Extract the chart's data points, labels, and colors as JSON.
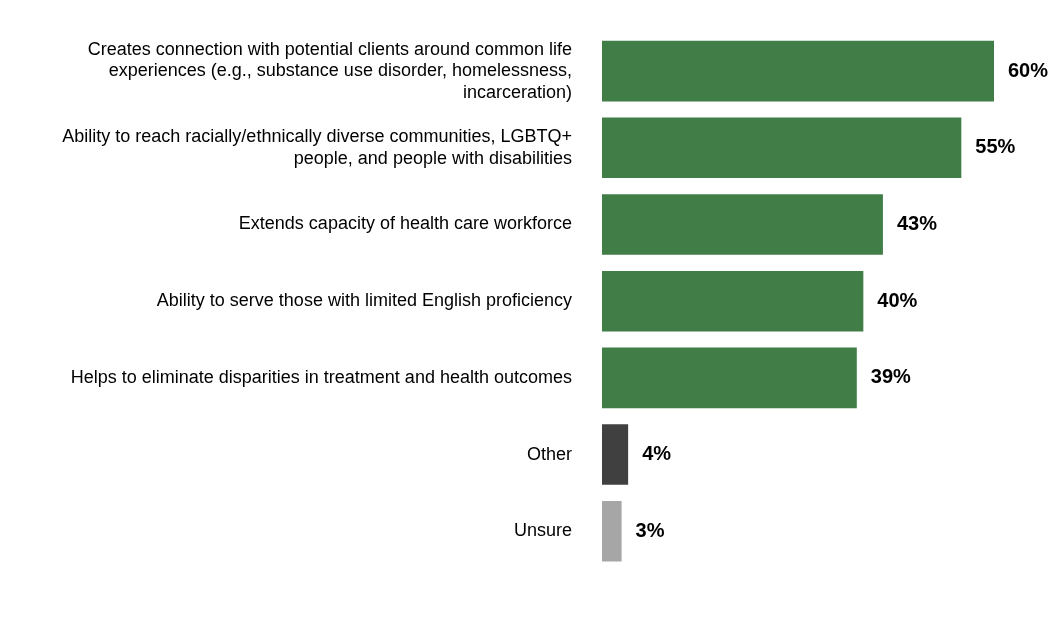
{
  "chart_data": {
    "type": "bar",
    "orientation": "horizontal",
    "categories": [
      "Creates connection with potential clients around common life experiences (e.g., substance use disorder, homelessness, incarceration)",
      "Ability to reach racially/ethnically diverse communities, LGBTQ+ people, and people with disabilities",
      "Extends capacity of health care workforce",
      "Ability to serve those with limited English proficiency",
      "Helps to eliminate disparities in treatment and health outcomes",
      "Other",
      "Unsure"
    ],
    "values": [
      60,
      55,
      43,
      40,
      39,
      4,
      3
    ],
    "colors": [
      "#417d47",
      "#417d47",
      "#417d47",
      "#417d47",
      "#417d47",
      "#404040",
      "#a6a6a6"
    ],
    "value_labels": [
      "60%",
      "55%",
      "43%",
      "40%",
      "39%",
      "4%",
      "3%"
    ],
    "xlim": [
      0,
      60
    ],
    "grid": false,
    "legend": false,
    "tick_labels": "y"
  }
}
